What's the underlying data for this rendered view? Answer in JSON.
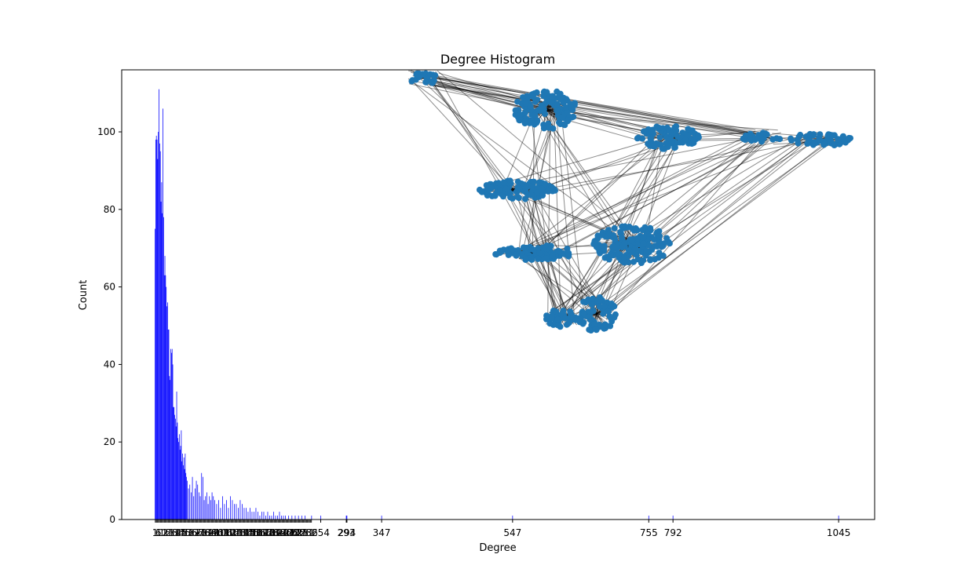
{
  "chart_data": {
    "type": "bar",
    "title": "Degree Histogram",
    "xlabel": "Degree",
    "ylabel": "Count",
    "xlim": [
      -50,
      1100
    ],
    "ylim": [
      0,
      116
    ],
    "bar_color": "#0000ff",
    "y_ticks": [
      0,
      20,
      40,
      60,
      80,
      100
    ],
    "x_tick_labels_visible": [
      "254",
      "293",
      "294",
      "347",
      "547",
      "755",
      "792",
      "1045"
    ],
    "x_tick_values_visible": [
      254,
      293,
      294,
      347,
      547,
      755,
      792,
      1045
    ],
    "x_dense_tick_range": [
      1,
      240
    ],
    "x": [
      1,
      2,
      3,
      4,
      5,
      6,
      7,
      8,
      9,
      10,
      11,
      12,
      13,
      14,
      15,
      16,
      17,
      18,
      19,
      20,
      21,
      22,
      23,
      24,
      25,
      26,
      27,
      28,
      29,
      30,
      31,
      32,
      33,
      34,
      35,
      36,
      37,
      38,
      39,
      40,
      41,
      42,
      43,
      44,
      45,
      46,
      47,
      48,
      49,
      50,
      52,
      54,
      56,
      58,
      60,
      62,
      64,
      66,
      68,
      70,
      72,
      74,
      76,
      78,
      80,
      82,
      84,
      86,
      88,
      90,
      92,
      95,
      98,
      101,
      104,
      107,
      110,
      113,
      116,
      119,
      122,
      125,
      128,
      131,
      134,
      137,
      140,
      143,
      146,
      149,
      152,
      155,
      158,
      161,
      164,
      167,
      170,
      173,
      176,
      179,
      182,
      185,
      188,
      191,
      194,
      197,
      200,
      205,
      210,
      215,
      220,
      225,
      230,
      240,
      254,
      293,
      294,
      347,
      547,
      755,
      792,
      1045
    ],
    "values": [
      75,
      98,
      99,
      98,
      93,
      100,
      111,
      97,
      95,
      82,
      87,
      79,
      106,
      78,
      63,
      68,
      63,
      60,
      55,
      56,
      49,
      49,
      37,
      36,
      44,
      43,
      44,
      40,
      29,
      29,
      27,
      26,
      24,
      33,
      25,
      21,
      20,
      22,
      18,
      19,
      23,
      15,
      17,
      14,
      16,
      13,
      17,
      12,
      11,
      10,
      8,
      9,
      7,
      11,
      6,
      8,
      10,
      9,
      7,
      6,
      12,
      11,
      5,
      6,
      7,
      4,
      6,
      5,
      7,
      6,
      5,
      4,
      5,
      3,
      6,
      4,
      5,
      3,
      6,
      5,
      4,
      4,
      3,
      5,
      4,
      3,
      3,
      2,
      3,
      2,
      2,
      3,
      2,
      1,
      2,
      2,
      1,
      2,
      1,
      1,
      2,
      1,
      1,
      2,
      1,
      1,
      1,
      1,
      1,
      1,
      1,
      1,
      1,
      1,
      1,
      1,
      1,
      1,
      1,
      1,
      1,
      1
    ],
    "network_overlay": {
      "node_color": "#1f77b4",
      "edge_color": "#000000"
    }
  }
}
